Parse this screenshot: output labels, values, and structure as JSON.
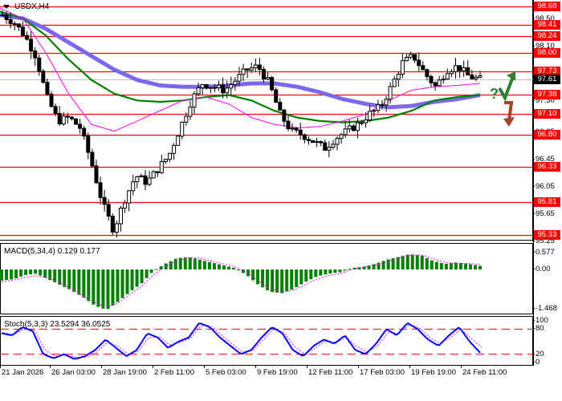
{
  "symbol_title": "USDX,H4",
  "colors": {
    "level_line": "#ff0000",
    "current_price_line": "#c0c0c0",
    "ma_slow": "#7b68ee",
    "ma_mid": "#008000",
    "ma_fast": "#ff00ff",
    "candle": "#000000",
    "macd_hist": "#008000",
    "macd_signal": "#ff00ff",
    "stoch_main": "#0000ff",
    "stoch_signal": "#ff00ff",
    "arrow_up": "#2e7d32",
    "arrow_down": "#a0442a"
  },
  "price_axis": {
    "ticks": [
      "98.50",
      "98.10",
      "97.30",
      "96.85",
      "96.45",
      "96.05",
      "95.65",
      "95.25"
    ],
    "level_labels": [
      "98.68",
      "98.41",
      "98.24",
      "98.00",
      "97.73",
      "97.38",
      "97.10",
      "96.80",
      "96.33",
      "95.81",
      "95.33"
    ],
    "current_price": "97.61"
  },
  "macd": {
    "title": "MACD(5,34,4) 0.129 0.177",
    "ticks": [
      "0.577",
      "0.00",
      "-1.468"
    ]
  },
  "stoch": {
    "title": "Stoch(5,3,3) 23.5294 36.0525",
    "ticks": [
      "100",
      "80",
      "20",
      "0"
    ]
  },
  "time_axis": {
    "labels": [
      "21 Jan 2026",
      "26 Jan 03:00",
      "28 Jan 19:00",
      "2 Feb 11:00",
      "5 Feb 03:00",
      "9 Feb 19:00",
      "12 Feb 11:00",
      "17 Feb 03:00",
      "19 Feb 19:00",
      "24 Feb 11:00"
    ]
  },
  "forecast": {
    "question_mark": "?"
  },
  "chart_data": [
    {
      "type": "candlestick",
      "title": "USDX,H4",
      "ylim": [
        95.25,
        98.75
      ],
      "levels": [
        98.68,
        98.41,
        98.24,
        98.0,
        97.73,
        97.38,
        97.1,
        96.8,
        96.33,
        95.81,
        95.33
      ],
      "current_price": 97.61,
      "x_labels": [
        "21 Jan 2026",
        "26 Jan 03:00",
        "28 Jan 19:00",
        "2 Feb 11:00",
        "5 Feb 03:00",
        "9 Feb 19:00",
        "12 Feb 11:00",
        "17 Feb 03:00",
        "19 Feb 19:00",
        "24 Feb 11:00"
      ],
      "close_path": [
        98.55,
        98.45,
        98.25,
        97.95,
        97.35,
        97.0,
        97.05,
        96.9,
        96.4,
        95.8,
        95.4,
        95.85,
        96.2,
        96.1,
        96.3,
        96.5,
        96.9,
        97.3,
        97.55,
        97.5,
        97.45,
        97.6,
        97.75,
        97.8,
        97.55,
        97.1,
        96.85,
        96.8,
        96.7,
        96.6,
        96.75,
        96.85,
        96.95,
        97.1,
        97.2,
        97.5,
        97.85,
        97.95,
        97.7,
        97.5,
        97.75,
        97.8,
        97.65,
        97.61
      ],
      "series": [
        {
          "name": "MA slow (blue-violet)",
          "values": [
            98.55,
            98.5,
            98.35,
            98.15,
            97.95,
            97.75,
            97.6,
            97.52,
            97.5,
            97.5,
            97.52,
            97.55,
            97.55,
            97.5,
            97.42,
            97.32,
            97.25,
            97.2,
            97.22,
            97.28,
            97.32,
            97.38
          ]
        },
        {
          "name": "MA mid (green)",
          "values": [
            98.6,
            98.5,
            98.25,
            97.9,
            97.6,
            97.4,
            97.3,
            97.28,
            97.3,
            97.35,
            97.38,
            97.3,
            97.15,
            97.05,
            97.0,
            96.98,
            97.0,
            97.05,
            97.15,
            97.3,
            97.35,
            97.38
          ]
        },
        {
          "name": "MA fast (magenta)",
          "values": [
            98.65,
            98.5,
            98.0,
            97.4,
            96.95,
            96.85,
            97.0,
            97.15,
            97.3,
            97.35,
            97.25,
            97.05,
            96.95,
            96.9,
            96.92,
            97.0,
            97.1,
            97.3,
            97.45,
            97.5,
            97.52,
            97.55
          ]
        }
      ]
    },
    {
      "type": "bar",
      "title": "MACD(5,34,4) 0.129 0.177",
      "ylim": [
        -1.468,
        0.577
      ],
      "series": [
        {
          "name": "MACD histogram",
          "values": [
            -0.4,
            -0.35,
            -0.2,
            -0.15,
            -0.35,
            -0.55,
            -0.75,
            -1.0,
            -1.3,
            -1.45,
            -1.15,
            -0.8,
            -0.5,
            -0.05,
            0.2,
            0.4,
            0.45,
            0.35,
            0.25,
            0.15,
            0.05,
            -0.2,
            -0.55,
            -0.8,
            -0.85,
            -0.7,
            -0.45,
            -0.25,
            -0.15,
            -0.1,
            0.05,
            0.1,
            0.2,
            0.35,
            0.45,
            0.55,
            0.5,
            0.3,
            0.2,
            0.25,
            0.2,
            0.129
          ]
        },
        {
          "name": "Signal",
          "values": [
            -0.45,
            -0.38,
            -0.28,
            -0.22,
            -0.3,
            -0.48,
            -0.7,
            -0.95,
            -1.2,
            -1.35,
            -1.2,
            -0.9,
            -0.6,
            -0.2,
            0.1,
            0.3,
            0.42,
            0.4,
            0.3,
            0.2,
            0.1,
            -0.1,
            -0.4,
            -0.7,
            -0.8,
            -0.75,
            -0.55,
            -0.35,
            -0.22,
            -0.15,
            0.0,
            0.08,
            0.15,
            0.28,
            0.4,
            0.52,
            0.52,
            0.38,
            0.25,
            0.22,
            0.22,
            0.177
          ]
        }
      ]
    },
    {
      "type": "line",
      "title": "Stoch(5,3,3) 23.5294 36.0525",
      "ylim": [
        0,
        100
      ],
      "levels": [
        80,
        20
      ],
      "series": [
        {
          "name": "%K",
          "values": [
            70,
            65,
            85,
            75,
            20,
            10,
            20,
            8,
            15,
            30,
            55,
            35,
            15,
            30,
            70,
            60,
            35,
            50,
            60,
            95,
            85,
            60,
            40,
            20,
            30,
            60,
            85,
            70,
            30,
            15,
            40,
            55,
            45,
            65,
            30,
            20,
            45,
            80,
            65,
            95,
            80,
            55,
            40,
            65,
            85,
            50,
            23.53
          ]
        },
        {
          "name": "%D",
          "values": [
            72,
            66,
            80,
            78,
            30,
            15,
            18,
            12,
            13,
            25,
            48,
            40,
            20,
            28,
            60,
            62,
            42,
            48,
            58,
            88,
            88,
            65,
            45,
            25,
            28,
            55,
            80,
            73,
            38,
            20,
            35,
            52,
            48,
            60,
            38,
            25,
            40,
            72,
            70,
            90,
            84,
            60,
            45,
            60,
            80,
            58,
            36.05
          ]
        }
      ]
    }
  ]
}
